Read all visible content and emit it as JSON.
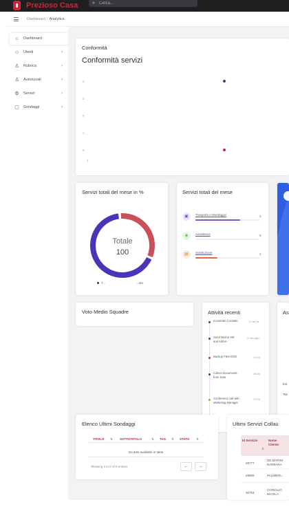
{
  "header": {
    "brand": "Prezioso Casa",
    "search_placeholder": "Cerca..."
  },
  "breadcrumb": {
    "root": "Dashboard",
    "separator": "/",
    "current": "Analytics"
  },
  "sidebar": {
    "items": [
      {
        "label": "Dashboard",
        "icon": "home-icon",
        "glyph": "⌂",
        "chevron": ""
      },
      {
        "label": "Utenti",
        "icon": "users-icon",
        "glyph": "☺",
        "chevron": "›"
      },
      {
        "label": "Rubrica",
        "icon": "contact-icon",
        "glyph": "♙",
        "chevron": "›"
      },
      {
        "label": "Autorizzati",
        "icon": "user-check-icon",
        "glyph": "♙",
        "chevron": "›"
      },
      {
        "label": "Servizi",
        "icon": "gear-icon",
        "glyph": "⚙",
        "chevron": "›"
      },
      {
        "label": "Sondaggi",
        "icon": "survey-icon",
        "glyph": "▢",
        "chevron": "›"
      }
    ]
  },
  "conformita": {
    "small_title": "Conformità",
    "title": "Conformità servizi",
    "y_ticks": [
      "4",
      "3",
      "2",
      "1",
      "0"
    ],
    "x_tick": "1"
  },
  "donut": {
    "title": "Servizi totali del mese in %",
    "center_label": "Totale",
    "center_value": "100",
    "legend": [
      "T...",
      "...uto"
    ]
  },
  "services": {
    "title": "Servizi totali del mese",
    "items": [
      {
        "label": "Trasporto e Montaggio",
        "value": "2",
        "glyph": "▣"
      },
      {
        "label": "Assistenza",
        "value": "0",
        "glyph": "◈"
      },
      {
        "label": "Sostituzione",
        "value": "1",
        "glyph": "▤"
      }
    ]
  },
  "voto": {
    "title": "Voto Medio Squadre"
  },
  "activity": {
    "title": "Attività recenti",
    "items": [
      {
        "text": "Incontrato Contatto",
        "time": "2 min fa"
      },
      {
        "text": "Send Mail to HR and Admin",
        "time": "2 min ago"
      },
      {
        "text": "Backup Files EOD",
        "time": "14:00"
      },
      {
        "text": "Collect documents from Sara",
        "time": "16:00"
      },
      {
        "text": "Conference call with Marketing Manager",
        "time": "17:00"
      }
    ]
  },
  "partial_card": {
    "title": "As",
    "line1": "Est",
    "line2": "Tan"
  },
  "surveys": {
    "title": "Elenco Ultimi Sondaggi",
    "columns": [
      "TITOLO",
      "SOTTOTITOLO",
      "TAG",
      "STATO"
    ],
    "sort_glyph": "⇅",
    "empty": "No data available in table",
    "info": "Showing 0 to 0 of 0 entries",
    "prev": "←",
    "next": "→"
  },
  "tested": {
    "title": "Ultimi Servizi Collau",
    "columns": [
      "Id Servizio",
      "Nome Cliente"
    ],
    "sort_glyph": "⇅",
    "rows": [
      {
        "id": "28777",
        "name": "DE MARINI BARBARA"
      },
      {
        "id": "29959",
        "name": "PALMIERI..."
      },
      {
        "id": "30763",
        "name": "CONCILIO NICOLA"
      }
    ]
  },
  "colors": {
    "brand": "#c8283a",
    "donut_red": "#c8505a",
    "donut_purple": "#4a35b8",
    "chart_blue": "#2f3fa0",
    "chart_red": "#c8283a"
  },
  "chart_data": {
    "type": "scatter",
    "title": "Conformità servizi",
    "xlabel": "",
    "ylabel": "",
    "ylim": [
      0,
      4
    ],
    "x_ticks": [
      "1"
    ],
    "series": [
      {
        "x": [
          1
        ],
        "y": [
          4
        ],
        "color": "#2f3fa0"
      },
      {
        "x": [
          1
        ],
        "y": [
          0
        ],
        "color": "#c8283a"
      }
    ],
    "grid": false
  },
  "donut_data": {
    "type": "pie",
    "values": [
      33,
      67
    ],
    "colors": [
      "#c8505a",
      "#4a35b8"
    ]
  }
}
